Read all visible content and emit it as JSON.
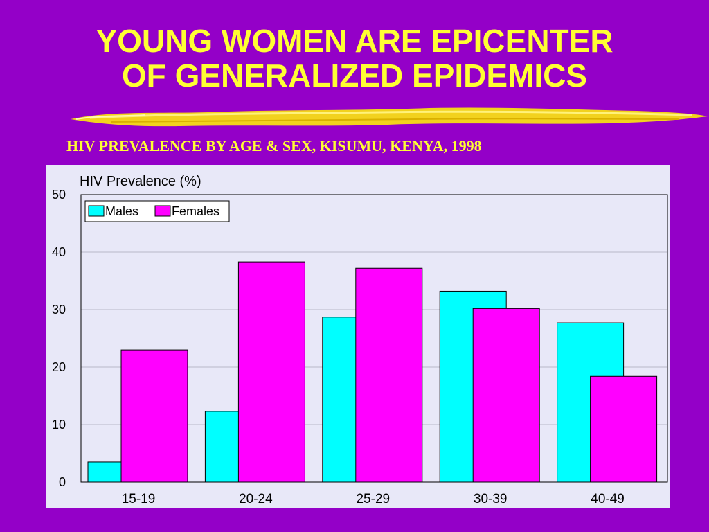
{
  "slide": {
    "title_line1": "YOUNG WOMEN ARE EPICENTER",
    "title_line2": "OF GENERALIZED EPIDEMICS",
    "subtitle": "HIV PREVALENCE BY AGE & SEX, KISUMU, KENYA, 1998"
  },
  "colors": {
    "background": "#9400c8",
    "title": "#ffff33",
    "plot_bg": "#e8e8f8",
    "males": "#00ffff",
    "females": "#ff00ff"
  },
  "chart_data": {
    "type": "bar",
    "title": "",
    "ylabel": "HIV Prevalence (%)",
    "xlabel": "",
    "categories": [
      "15-19",
      "20-24",
      "25-29",
      "30-39",
      "40-49"
    ],
    "series": [
      {
        "name": "Males",
        "color": "#00ffff",
        "values": [
          3.5,
          12.3,
          28.7,
          33.2,
          27.7
        ]
      },
      {
        "name": "Females",
        "color": "#ff00ff",
        "values": [
          23.0,
          38.3,
          37.2,
          30.2,
          18.4
        ]
      }
    ],
    "ylim": [
      0,
      50
    ],
    "yticks": [
      "0",
      "10",
      "20",
      "30",
      "40",
      "50"
    ],
    "grid": true,
    "legend": "top-left"
  }
}
